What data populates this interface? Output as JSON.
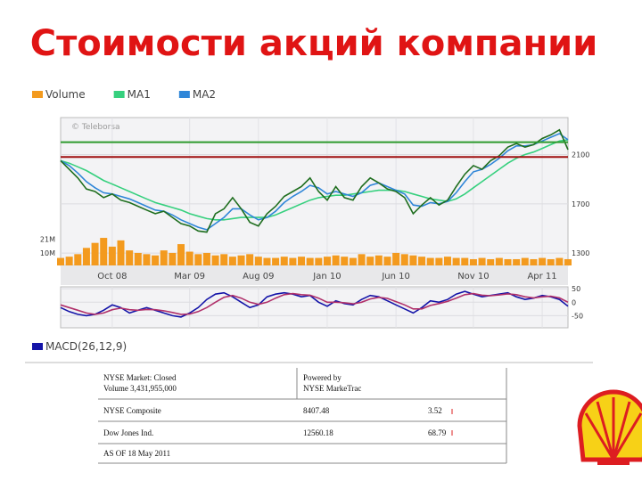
{
  "title": "Стоимости акций компании",
  "chart_data": [
    {
      "type": "line",
      "watermark": "© Teleborsa",
      "categories": [
        null,
        null,
        null,
        null,
        null,
        null,
        "Oct 08",
        null,
        null,
        null,
        null,
        null,
        null,
        null,
        null,
        "Mar 09",
        null,
        null,
        null,
        null,
        null,
        null,
        null,
        "Aug 09",
        null,
        null,
        null,
        null,
        null,
        null,
        null,
        "Jan 10",
        null,
        null,
        null,
        null,
        null,
        null,
        null,
        "Jun 10",
        null,
        null,
        null,
        null,
        null,
        null,
        null,
        null,
        "Nov 10",
        null,
        null,
        null,
        null,
        null,
        null,
        null,
        "Apr 11",
        null,
        null,
        null
      ],
      "ylim": [
        1200,
        2400
      ],
      "yticks": [
        1300,
        1700,
        2100
      ],
      "y2lim": [
        0,
        118
      ],
      "y2ticks": [
        {
          "value": 10,
          "label": "10M"
        },
        {
          "value": 21,
          "label": "21M"
        }
      ],
      "hlines": [
        {
          "value": 2200,
          "color": "#2e9a2e"
        },
        {
          "value": 2080,
          "color": "#a01010"
        }
      ],
      "series": [
        {
          "name": "Volume",
          "type": "bar",
          "axis": "y2",
          "color": "#f39a1e",
          "values": [
            6,
            7,
            9,
            14,
            18,
            22,
            15,
            20,
            12,
            10,
            9,
            8,
            12,
            10,
            17,
            11,
            9,
            10,
            8,
            9,
            7,
            8,
            9,
            7,
            6,
            6,
            7,
            6,
            7,
            6,
            6,
            7,
            8,
            7,
            6,
            9,
            7,
            8,
            7,
            10,
            9,
            8,
            7,
            6,
            6,
            7,
            6,
            6,
            5,
            6,
            5,
            6,
            5,
            5,
            6,
            5,
            6,
            5,
            6,
            5
          ]
        },
        {
          "name": "MA1",
          "color": "#36d07e",
          "values": [
            2050,
            2030,
            2000,
            1970,
            1930,
            1890,
            1860,
            1830,
            1800,
            1770,
            1740,
            1710,
            1690,
            1670,
            1650,
            1620,
            1600,
            1580,
            1570,
            1570,
            1580,
            1590,
            1590,
            1590,
            1590,
            1610,
            1640,
            1670,
            1700,
            1730,
            1750,
            1760,
            1770,
            1770,
            1780,
            1790,
            1800,
            1810,
            1810,
            1810,
            1800,
            1780,
            1760,
            1740,
            1730,
            1720,
            1740,
            1780,
            1830,
            1880,
            1930,
            1980,
            2030,
            2070,
            2100,
            2120,
            2150,
            2180,
            2210,
            2220
          ]
        },
        {
          "name": "MA2",
          "color": "#2f86d8",
          "values": [
            2050,
            2010,
            1950,
            1880,
            1830,
            1790,
            1780,
            1760,
            1740,
            1710,
            1680,
            1650,
            1640,
            1610,
            1570,
            1540,
            1510,
            1490,
            1540,
            1590,
            1660,
            1660,
            1610,
            1570,
            1590,
            1640,
            1710,
            1760,
            1800,
            1850,
            1830,
            1780,
            1800,
            1780,
            1760,
            1790,
            1850,
            1870,
            1840,
            1810,
            1780,
            1690,
            1680,
            1710,
            1700,
            1720,
            1790,
            1880,
            1960,
            1980,
            2020,
            2070,
            2130,
            2170,
            2170,
            2180,
            2210,
            2240,
            2270,
            2220
          ]
        },
        {
          "color": "#1f6e1f",
          "values": [
            2050,
            1980,
            1910,
            1820,
            1800,
            1750,
            1780,
            1730,
            1710,
            1680,
            1650,
            1620,
            1640,
            1590,
            1540,
            1520,
            1480,
            1470,
            1620,
            1660,
            1750,
            1660,
            1550,
            1520,
            1620,
            1680,
            1760,
            1800,
            1840,
            1910,
            1800,
            1730,
            1840,
            1750,
            1730,
            1840,
            1910,
            1870,
            1820,
            1800,
            1750,
            1620,
            1690,
            1750,
            1690,
            1730,
            1840,
            1940,
            2010,
            1980,
            2050,
            2090,
            2160,
            2190,
            2160,
            2180,
            2230,
            2260,
            2300,
            2140
          ]
        }
      ]
    },
    {
      "type": "line",
      "ylim": [
        -95,
        57
      ],
      "yticks": [
        -50,
        0,
        50
      ],
      "series": [
        {
          "name": "MACD(26,12,9)",
          "color": "#1414a8",
          "values": [
            -20,
            -35,
            -45,
            -50,
            -45,
            -30,
            -10,
            -20,
            -40,
            -30,
            -20,
            -30,
            -40,
            -50,
            -55,
            -40,
            -20,
            10,
            30,
            35,
            20,
            0,
            -20,
            -10,
            20,
            30,
            35,
            30,
            20,
            25,
            0,
            -15,
            5,
            -5,
            -10,
            10,
            25,
            20,
            5,
            -10,
            -25,
            -40,
            -20,
            5,
            0,
            10,
            30,
            40,
            30,
            20,
            25,
            30,
            35,
            20,
            10,
            15,
            25,
            20,
            10,
            -15
          ]
        },
        {
          "color": "#b0306a",
          "values": [
            -10,
            -20,
            -30,
            -40,
            -45,
            -40,
            -28,
            -22,
            -28,
            -30,
            -27,
            -28,
            -32,
            -38,
            -45,
            -44,
            -35,
            -20,
            0,
            18,
            25,
            15,
            0,
            -8,
            0,
            15,
            28,
            32,
            28,
            26,
            15,
            0,
            0,
            -2,
            -6,
            0,
            12,
            18,
            14,
            2,
            -10,
            -25,
            -25,
            -12,
            -5,
            3,
            15,
            28,
            32,
            26,
            24,
            27,
            31,
            28,
            20,
            16,
            20,
            22,
            16,
            0
          ]
        }
      ]
    }
  ],
  "table": {
    "rows": [
      [
        [
          "NYSE Market: Closed",
          "Volume 3,431,955,000"
        ],
        [
          "Powered by",
          "NYSE MarkeTrac"
        ]
      ],
      [
        "NYSE Composite",
        "8407.48",
        "3.52"
      ],
      [
        "Dow Jones Ind.",
        "12560.18",
        "68.79"
      ],
      [
        "AS OF 18 May 2011"
      ]
    ]
  }
}
